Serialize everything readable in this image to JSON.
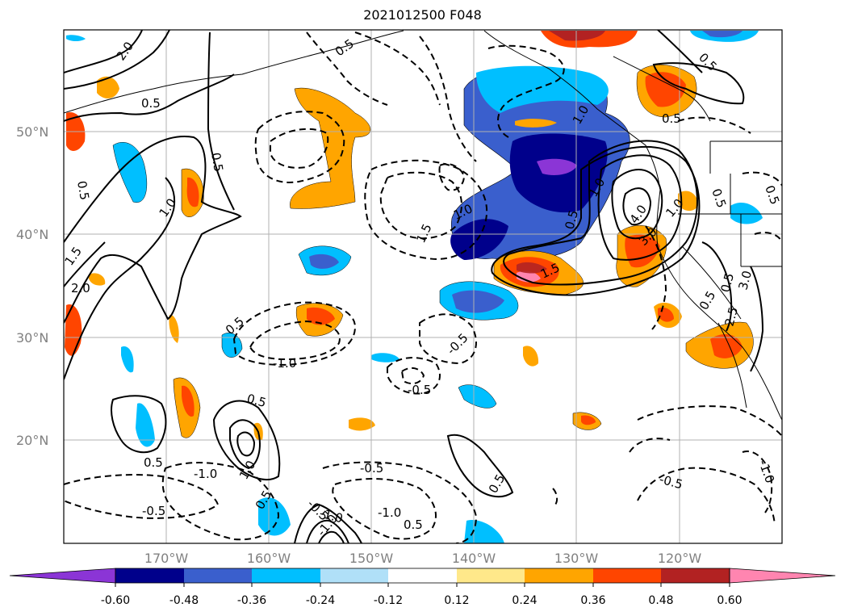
{
  "title": "2021012500 F048",
  "map": {
    "lat_ticks": [
      "50°N",
      "40°N",
      "30°N",
      "20°N"
    ],
    "lon_ticks": [
      "170°W",
      "160°W",
      "150°W",
      "140°W",
      "130°W",
      "120°W"
    ],
    "lon_range": [
      -180,
      -110
    ],
    "lat_range": [
      10,
      60
    ],
    "gridlines": true
  },
  "colorbar": {
    "ticks": [
      "-0.60",
      "-0.48",
      "-0.36",
      "-0.24",
      "-0.12",
      "0.12",
      "0.24",
      "0.36",
      "0.48",
      "0.60"
    ],
    "colors": [
      "#8b35d6",
      "#00008b",
      "#3a5fcd",
      "#00bfff",
      "#b0e0f8",
      "#ffffff",
      "#ffe88a",
      "#ffa500",
      "#ff4500",
      "#b22222",
      "#ff85b0"
    ],
    "extend": "both"
  },
  "contour_labels": [
    "2.0",
    "0.5",
    "0.5",
    "0.5",
    "1.0",
    "1.5",
    "2.0",
    "0.5",
    "1.0",
    "1.5",
    "1.0",
    "0.5",
    "0.5",
    "1.0",
    "4.0",
    "3.0",
    "1.5",
    "0.5",
    "1.0",
    "0.5",
    "0.5",
    "-0.5",
    "-1.0",
    "-0.5",
    "-0.5",
    "-0.5",
    "0.5",
    "0.5",
    "-1.0",
    "0.5",
    "1.0",
    "0.5",
    "-1.0",
    "-0.5",
    "-1.0",
    "-1.0",
    "-0.5",
    "-1.0",
    "0.5",
    "0.5",
    "3.0",
    "2.5",
    "0.5",
    "0.5"
  ]
}
